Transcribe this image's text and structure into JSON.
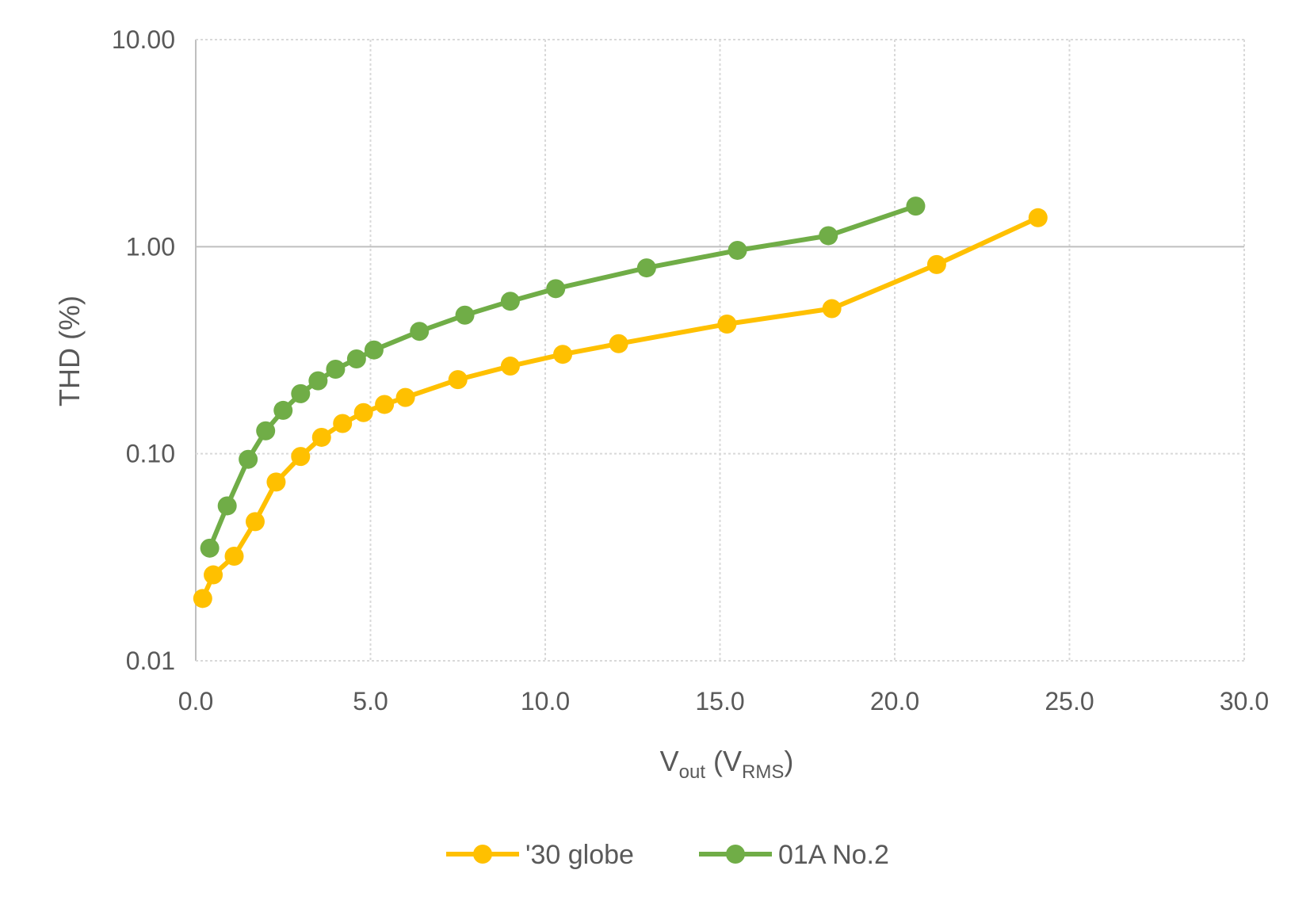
{
  "chart_data": {
    "type": "line",
    "title": "",
    "xlabel": {
      "main": "V",
      "sub": "out",
      "paren_open": " (V",
      "paren_sub": "RMS",
      "paren_close": ")"
    },
    "ylabel": "THD (%)",
    "x_axis": {
      "min": 0,
      "max": 30,
      "ticks": [
        0,
        5,
        10,
        15,
        20,
        25,
        30
      ],
      "tick_labels": [
        "0.0",
        "5.0",
        "10.0",
        "15.0",
        "20.0",
        "25.0",
        "30.0"
      ]
    },
    "y_axis": {
      "scale": "log",
      "min": 0.01,
      "max": 10,
      "ticks": [
        0.01,
        0.1,
        1,
        10
      ],
      "tick_labels": [
        "0.01",
        "0.10",
        "1.00",
        "10.00"
      ]
    },
    "grid": "dotted, solid at 1.00",
    "legend_position": "bottom",
    "series": [
      {
        "name": "'30 globe",
        "color": "#FFC000",
        "x": [
          0.2,
          0.5,
          1.1,
          1.7,
          2.3,
          3.0,
          3.6,
          4.2,
          4.8,
          5.4,
          6.0,
          7.5,
          9.0,
          10.5,
          12.1,
          15.2,
          18.2,
          21.2,
          24.1
        ],
        "y": [
          0.02,
          0.026,
          0.032,
          0.047,
          0.073,
          0.097,
          0.12,
          0.14,
          0.158,
          0.173,
          0.187,
          0.228,
          0.265,
          0.302,
          0.34,
          0.423,
          0.502,
          0.82,
          1.38
        ]
      },
      {
        "name": "01A No.2",
        "color": "#70AD47",
        "x": [
          0.4,
          0.9,
          1.5,
          2.0,
          2.5,
          3.0,
          3.5,
          4.0,
          4.6,
          5.1,
          6.4,
          7.7,
          9.0,
          10.3,
          12.9,
          15.5,
          18.1,
          20.6
        ],
        "y": [
          0.035,
          0.056,
          0.094,
          0.129,
          0.162,
          0.195,
          0.225,
          0.256,
          0.287,
          0.317,
          0.39,
          0.467,
          0.545,
          0.627,
          0.79,
          0.96,
          1.13,
          1.57
        ]
      }
    ]
  }
}
